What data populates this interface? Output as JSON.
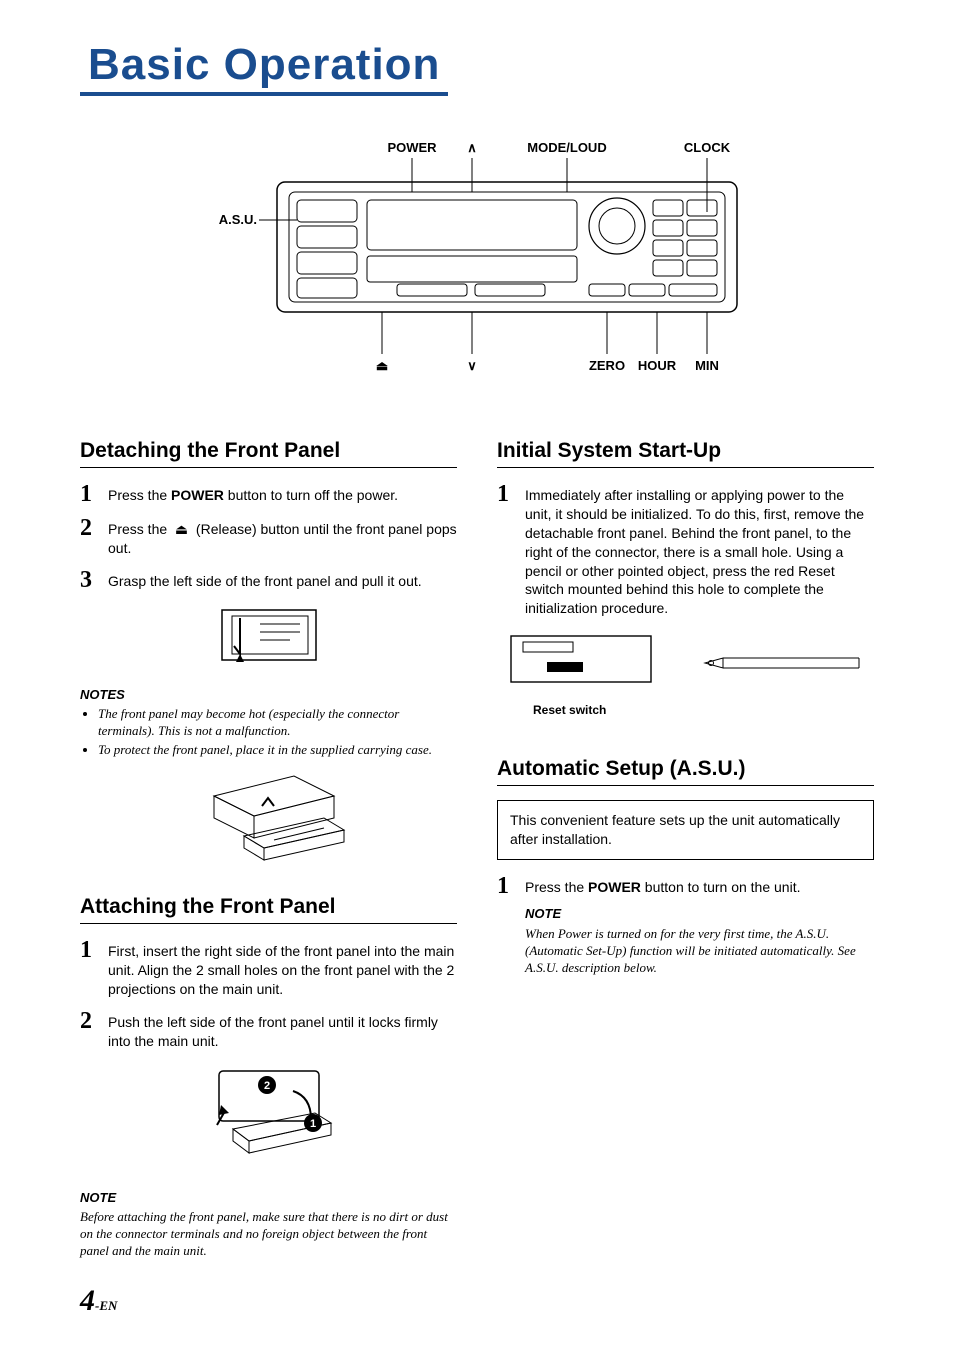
{
  "page": {
    "title": "Basic Operation",
    "number_big": "4",
    "number_suffix": "-EN"
  },
  "colors": {
    "title_blue": "#1a4d8f",
    "text": "#000000",
    "bg": "#ffffff"
  },
  "diagram": {
    "labels_top": {
      "power": "POWER",
      "mode_loud": "MODE/LOUD",
      "clock": "CLOCK"
    },
    "label_left": "A.S.U.",
    "labels_bottom": {
      "eject_icon": "⏏",
      "up_icon": "∧",
      "down_icon": "∨",
      "zero": "ZERO",
      "hour": "HOUR",
      "min": "MIN"
    }
  },
  "sections": {
    "detach": {
      "title": "Detaching the Front Panel",
      "steps": [
        {
          "n": "1",
          "html": "Press the <b>POWER</b> button to turn off the power."
        },
        {
          "n": "2",
          "html": "Press the &nbsp;⏏&nbsp; (Release) button until the front panel pops out."
        },
        {
          "n": "3",
          "html": "Grasp the left side of the front panel and pull it out."
        }
      ],
      "notes_head": "NOTES",
      "notes": [
        "The front panel may become hot (especially the connector terminals). This is not a malfunction.",
        "To protect the front panel, place it in the supplied carrying case."
      ]
    },
    "attach": {
      "title": "Attaching the Front Panel",
      "steps": [
        {
          "n": "1",
          "html": "First, insert the right side of the front panel into the main unit. Align the 2 small holes on the front panel with the 2 projections on the main unit."
        },
        {
          "n": "2",
          "html": "Push the left side of the front panel until it locks firmly into the main unit."
        }
      ],
      "note_head": "NOTE",
      "note": "Before attaching the front panel, make sure that there is no dirt or dust on the connector terminals and no foreign object between the front panel and the main unit."
    },
    "startup": {
      "title": "Initial System Start-Up",
      "steps": [
        {
          "n": "1",
          "html": "Immediately after installing or applying power to the unit, it should be initialized. To do this, first, remove the detachable front panel. Behind the front panel, to the right of the connector, there is a small hole. Using a pencil or other pointed object, press the red Reset switch mounted behind this hole to complete the initialization procedure."
        }
      ],
      "reset_label": "Reset switch"
    },
    "asu": {
      "title": "Automatic Setup (A.S.U.)",
      "box": "This convenient feature sets up the unit automatically after installation.",
      "steps": [
        {
          "n": "1",
          "html": "Press the <b>POWER</b> button to turn on the unit."
        }
      ],
      "note_head": "NOTE",
      "note": "When Power is turned on for the very first time, the A.S.U. (Automatic Set-Up) function will be initiated automatically. See A.S.U. description below."
    }
  }
}
